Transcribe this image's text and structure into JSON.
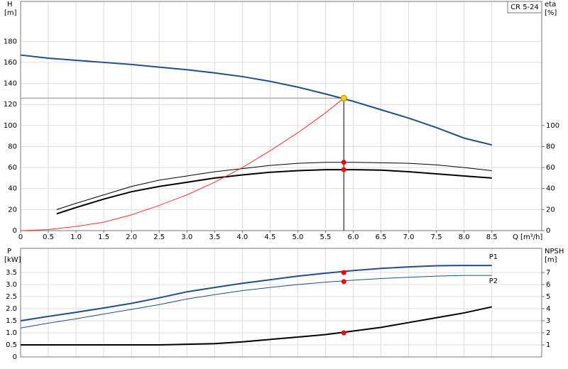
{
  "chart_data": [
    {
      "type": "line",
      "title": "CR 5-24",
      "ylabel": "H",
      "yunit": "[m]",
      "y2label": "eta",
      "y2unit": "[%]",
      "xlabel": "Q [m³/h]",
      "xlim": [
        0,
        9.4
      ],
      "ylim": [
        0,
        218
      ],
      "y2lim": [
        0,
        218
      ],
      "xticks": [
        0,
        0.5,
        {
          "value": 1,
          "label": "1.0"
        },
        1.5,
        {
          "value": 2,
          "label": "2.0"
        },
        2.5,
        {
          "value": 3,
          "label": "3.0"
        },
        3.5,
        {
          "value": 4,
          "label": "4.0"
        },
        4.5,
        {
          "value": 5,
          "label": "5.0"
        },
        5.5,
        {
          "value": 6,
          "label": "6.0"
        },
        6.5,
        {
          "value": 7,
          "label": "7.0"
        },
        7.5,
        {
          "value": 8,
          "label": "8.0"
        },
        8.5
      ],
      "yticks": [
        0,
        20,
        40,
        60,
        80,
        100,
        120,
        140,
        160,
        180
      ],
      "y2ticks": [
        0,
        20,
        40,
        60,
        80,
        100
      ],
      "grid": true,
      "series": [
        {
          "color": "#1f4e8c",
          "width": 2,
          "x": [
            0,
            0.5,
            1,
            1.5,
            2,
            2.5,
            3,
            3.5,
            4,
            4.5,
            5,
            5.5,
            6,
            6.5,
            7,
            7.5,
            8,
            8.5
          ],
          "values": [
            167,
            164,
            162,
            160,
            158,
            155.5,
            153,
            150,
            146.5,
            142,
            136.5,
            130,
            123,
            115,
            107,
            98,
            88,
            81.5
          ]
        },
        {
          "color": "#000000",
          "width": 1,
          "axis": "y2",
          "x": [
            0.65,
            1,
            1.5,
            2,
            2.5,
            3,
            3.5,
            4,
            4.5,
            5,
            5.5,
            6,
            6.5,
            7,
            7.5,
            8,
            8.5
          ],
          "values": [
            20,
            26,
            34,
            42,
            48,
            52,
            56,
            59,
            62,
            64,
            65,
            65,
            64.5,
            64,
            62.5,
            60,
            57
          ]
        },
        {
          "color": "#000000",
          "width": 2,
          "axis": "y2",
          "x": [
            0.65,
            1,
            1.5,
            2,
            2.5,
            3,
            3.5,
            4,
            4.5,
            5,
            5.5,
            6,
            6.5,
            7,
            7.5,
            8,
            8.5
          ],
          "values": [
            16,
            22,
            30,
            37,
            42,
            46,
            50,
            53,
            55.5,
            57,
            58,
            58,
            57.5,
            56,
            54,
            52,
            50
          ]
        },
        {
          "color": "#ff3030",
          "width": 1,
          "x": [
            0,
            0.5,
            1,
            1.5,
            2,
            2.5,
            3,
            3.5,
            4,
            4.5,
            5,
            5.5,
            5.83
          ],
          "values": [
            0,
            1,
            4,
            8,
            15,
            24,
            34,
            46,
            60,
            76,
            93,
            112,
            126
          ]
        }
      ],
      "operating_point": {
        "x": 5.83,
        "y": 126,
        "color": "#ffd700"
      },
      "points": [
        {
          "x": 5.83,
          "y": 65,
          "axis": "y2",
          "color": "#ff0000"
        },
        {
          "x": 5.83,
          "y": 58,
          "axis": "y2",
          "color": "#ff0000"
        }
      ]
    },
    {
      "type": "line",
      "ylabel": "P",
      "yunit": "[kW]",
      "y2label": "NPSH",
      "y2unit": "[m]",
      "xlim": [
        0,
        9.4
      ],
      "ylim": [
        0,
        4.5
      ],
      "y2lim": [
        0,
        9
      ],
      "yticks": [
        0,
        0.5,
        {
          "value": 1,
          "label": "1.0"
        },
        1.5,
        {
          "value": 2,
          "label": "2.0"
        },
        2.5,
        {
          "value": 3,
          "label": "3.0"
        },
        3.5
      ],
      "y2ticks": [
        1,
        2,
        3,
        4,
        5,
        6,
        7
      ],
      "grid": true,
      "series": [
        {
          "name": "P1",
          "color": "#1f4e8c",
          "width": 2,
          "x": [
            0,
            0.5,
            1,
            1.5,
            2,
            2.5,
            3,
            3.5,
            4,
            4.5,
            5,
            5.5,
            6,
            6.5,
            7,
            7.5,
            8,
            8.5
          ],
          "values": [
            1.5,
            1.68,
            1.85,
            2.03,
            2.22,
            2.45,
            2.7,
            2.88,
            3.05,
            3.2,
            3.35,
            3.47,
            3.58,
            3.67,
            3.73,
            3.78,
            3.79,
            3.79
          ]
        },
        {
          "name": "P2",
          "color": "#1f4e8c",
          "width": 1,
          "x": [
            0,
            0.5,
            1,
            1.5,
            2,
            2.5,
            3,
            3.5,
            4,
            4.5,
            5,
            5.5,
            6,
            6.5,
            7,
            7.5,
            8,
            8.5
          ],
          "values": [
            1.2,
            1.4,
            1.58,
            1.78,
            1.97,
            2.17,
            2.4,
            2.58,
            2.75,
            2.88,
            3.0,
            3.1,
            3.18,
            3.25,
            3.3,
            3.35,
            3.38,
            3.38
          ]
        },
        {
          "color": "#000000",
          "width": 2,
          "axis": "y2",
          "x": [
            0,
            0.5,
            1,
            1.5,
            2,
            2.5,
            3,
            3.5,
            4,
            4.5,
            5,
            5.5,
            6,
            6.5,
            7,
            7.5,
            8,
            8.5
          ],
          "values": [
            1,
            1,
            1,
            1,
            1,
            1,
            1.05,
            1.1,
            1.25,
            1.45,
            1.65,
            1.85,
            2.15,
            2.45,
            2.85,
            3.25,
            3.65,
            4.15
          ]
        }
      ],
      "points": [
        {
          "x": 5.83,
          "y": 3.5,
          "color": "#ff0000"
        },
        {
          "x": 5.83,
          "y": 3.12,
          "color": "#ff0000"
        },
        {
          "x": 5.83,
          "y": 2,
          "axis": "y2",
          "color": "#ff0000"
        }
      ]
    }
  ]
}
